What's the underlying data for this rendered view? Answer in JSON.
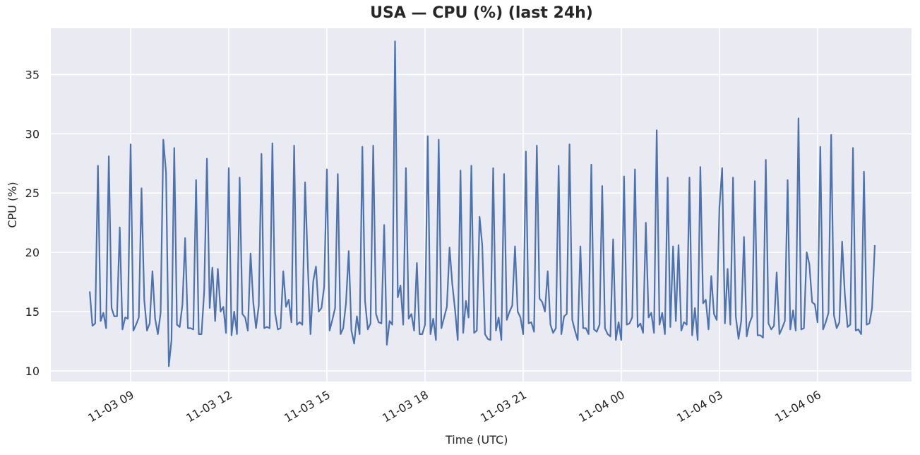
{
  "chart_data": {
    "type": "line",
    "title": "USA — CPU (%) (last 24h)",
    "xlabel": "Time (UTC)",
    "ylabel": "CPU (%)",
    "ylim": [
      9.1,
      38.9
    ],
    "yticks": [
      10,
      15,
      20,
      25,
      30,
      35
    ],
    "xticks": [
      "11-03 09",
      "11-03 12",
      "11-03 15",
      "11-03 18",
      "11-03 21",
      "11-04 00",
      "11-04 03",
      "11-04 06"
    ],
    "grid": true,
    "legend": null,
    "x_start": "11-03 07:45",
    "x_interval_minutes": 5,
    "series": [
      {
        "name": "CPU (%)",
        "color": "#4c72b0",
        "values": [
          16.7,
          13.8,
          14.0,
          27.3,
          14.2,
          14.9,
          13.6,
          28.1,
          15.3,
          14.6,
          14.6,
          22.1,
          13.5,
          14.5,
          14.4,
          29.1,
          13.4,
          13.9,
          14.5,
          25.4,
          16.0,
          13.4,
          14.0,
          18.4,
          14.4,
          13.1,
          14.9,
          29.5,
          26.7,
          10.4,
          12.6,
          28.8,
          13.9,
          13.7,
          15.6,
          21.2,
          13.6,
          13.6,
          13.5,
          26.1,
          13.1,
          13.1,
          16.7,
          27.9,
          15.3,
          18.7,
          14.2,
          18.6,
          15.0,
          15.4,
          13.2,
          27.1,
          13.0,
          15.0,
          13.1,
          26.3,
          14.8,
          14.5,
          13.4,
          19.9,
          15.8,
          13.6,
          15.5,
          28.3,
          13.6,
          13.7,
          13.6,
          29.2,
          14.9,
          13.5,
          13.6,
          18.4,
          15.4,
          16.0,
          14.1,
          29.0,
          13.9,
          14.1,
          13.9,
          25.9,
          18.8,
          13.1,
          17.6,
          18.8,
          15.0,
          15.3,
          17.1,
          27.0,
          13.4,
          14.3,
          15.3,
          26.6,
          13.1,
          13.6,
          15.7,
          20.1,
          13.4,
          12.3,
          14.6,
          13.1,
          28.9,
          15.9,
          13.5,
          14.0,
          29.0,
          14.8,
          14.1,
          14.0,
          22.3,
          12.2,
          14.2,
          13.9,
          37.8,
          16.2,
          17.2,
          13.9,
          27.1,
          14.4,
          14.8,
          13.4,
          19.1,
          13.1,
          13.1,
          13.9,
          29.8,
          13.1,
          14.4,
          12.6,
          29.5,
          13.6,
          14.5,
          15.4,
          20.4,
          17.3,
          15.2,
          12.6,
          26.9,
          13.2,
          15.9,
          14.5,
          27.3,
          13.2,
          13.4,
          23.0,
          20.6,
          13.1,
          12.7,
          12.6,
          27.1,
          13.4,
          14.5,
          12.6,
          26.6,
          14.3,
          15.0,
          15.5,
          20.5,
          15.0,
          14.5,
          13.1,
          28.5,
          14.0,
          14.1,
          13.3,
          29.0,
          16.1,
          15.8,
          15.0,
          18.4,
          13.9,
          13.2,
          13.6,
          27.3,
          13.1,
          14.6,
          14.8,
          29.1,
          14.3,
          13.4,
          12.6,
          20.5,
          13.6,
          13.6,
          13.1,
          27.4,
          13.5,
          13.3,
          13.9,
          25.6,
          13.6,
          13.1,
          12.9,
          21.1,
          12.6,
          14.1,
          12.6,
          26.4,
          13.9,
          14.0,
          14.5,
          27.0,
          13.7,
          14.0,
          13.2,
          22.5,
          14.5,
          14.9,
          13.2,
          30.3,
          13.9,
          14.9,
          13.1,
          26.3,
          13.7,
          20.5,
          14.2,
          20.6,
          13.4,
          14.1,
          13.9,
          26.3,
          13.0,
          15.3,
          12.6,
          27.2,
          15.7,
          16.0,
          13.5,
          18.0,
          14.8,
          14.3,
          23.8,
          27.1,
          14.0,
          18.6,
          13.9,
          26.3,
          14.6,
          12.7,
          14.2,
          21.3,
          12.9,
          14.0,
          14.6,
          26.0,
          13.0,
          13.0,
          12.8,
          27.8,
          14.0,
          13.5,
          13.8,
          18.3,
          13.1,
          13.6,
          14.2,
          26.1,
          13.5,
          15.1,
          13.4,
          31.3,
          13.5,
          13.6,
          20.0,
          19.0,
          15.8,
          15.6,
          14.1,
          28.9,
          13.5,
          14.1,
          14.9,
          29.9,
          14.7,
          13.6,
          14.1,
          20.9,
          16.5,
          13.7,
          13.9,
          28.8,
          13.4,
          13.5,
          13.1,
          26.8,
          13.9,
          14.0,
          15.3,
          20.6
        ]
      }
    ]
  }
}
